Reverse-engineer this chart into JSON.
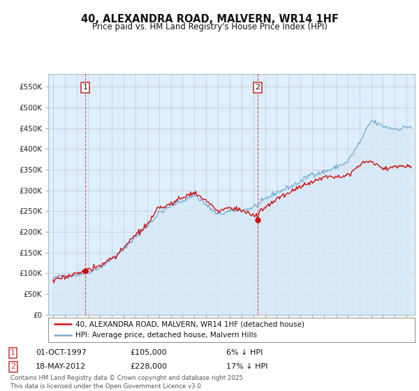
{
  "title": "40, ALEXANDRA ROAD, MALVERN, WR14 1HF",
  "subtitle": "Price paid vs. HM Land Registry's House Price Index (HPI)",
  "ylim": [
    0,
    580000
  ],
  "yticks": [
    0,
    50000,
    100000,
    150000,
    200000,
    250000,
    300000,
    350000,
    400000,
    450000,
    500000,
    550000
  ],
  "ytick_labels": [
    "£0",
    "£50K",
    "£100K",
    "£150K",
    "£200K",
    "£250K",
    "£300K",
    "£350K",
    "£400K",
    "£450K",
    "£500K",
    "£550K"
  ],
  "hpi_color": "#7ab0d4",
  "hpi_fill_color": "#d6e8f5",
  "price_color": "#cc1111",
  "marker1_date_x": 1997.75,
  "marker2_date_x": 2012.37,
  "sale1_date": "01-OCT-1997",
  "sale1_price": "£105,000",
  "sale1_hpi": "6% ↓ HPI",
  "sale2_date": "18-MAY-2012",
  "sale2_price": "£228,000",
  "sale2_hpi": "17% ↓ HPI",
  "legend_line1": "40, ALEXANDRA ROAD, MALVERN, WR14 1HF (detached house)",
  "legend_line2": "HPI: Average price, detached house, Malvern Hills",
  "footer": "Contains HM Land Registry data © Crown copyright and database right 2025.\nThis data is licensed under the Open Government Licence v3.0.",
  "background_color": "#ffffff",
  "chart_bg_color": "#ddeeff",
  "grid_color": "#cccccc",
  "xlim_start": 1994.6,
  "xlim_end": 2025.7,
  "hpi_keypoints_x": [
    1995,
    1996,
    1997,
    1998,
    1999,
    2000,
    2001,
    2002,
    2003,
    2004,
    2005,
    2006,
    2007,
    2008,
    2009,
    2010,
    2011,
    2012,
    2013,
    2014,
    2015,
    2016,
    2017,
    2018,
    2019,
    2020,
    2021,
    2022,
    2023,
    2024,
    2025
  ],
  "hpi_keypoints_y": [
    87000,
    92000,
    99000,
    108000,
    122000,
    142000,
    165000,
    195000,
    222000,
    255000,
    270000,
    282000,
    298000,
    275000,
    248000,
    255000,
    255000,
    265000,
    278000,
    295000,
    308000,
    322000,
    340000,
    348000,
    358000,
    372000,
    415000,
    465000,
    450000,
    445000,
    452000
  ],
  "price_keypoints_x": [
    1995,
    1996,
    1997,
    1998,
    1999,
    2000,
    2001,
    2002,
    2003,
    2004,
    2005,
    2006,
    2007,
    2008,
    2009,
    2010,
    2011,
    2012,
    2013,
    2014,
    2015,
    2016,
    2017,
    2018,
    2019,
    2020,
    2021,
    2022,
    2023,
    2024,
    2025
  ],
  "price_keypoints_y": [
    83000,
    87000,
    100000,
    107000,
    115000,
    135000,
    158000,
    188000,
    210000,
    248000,
    258000,
    272000,
    288000,
    265000,
    238000,
    248000,
    245000,
    228000,
    248000,
    268000,
    282000,
    295000,
    312000,
    320000,
    328000,
    335000,
    360000,
    370000,
    350000,
    355000,
    360000
  ],
  "sale1_price_val": 105000,
  "sale2_price_val": 228000
}
